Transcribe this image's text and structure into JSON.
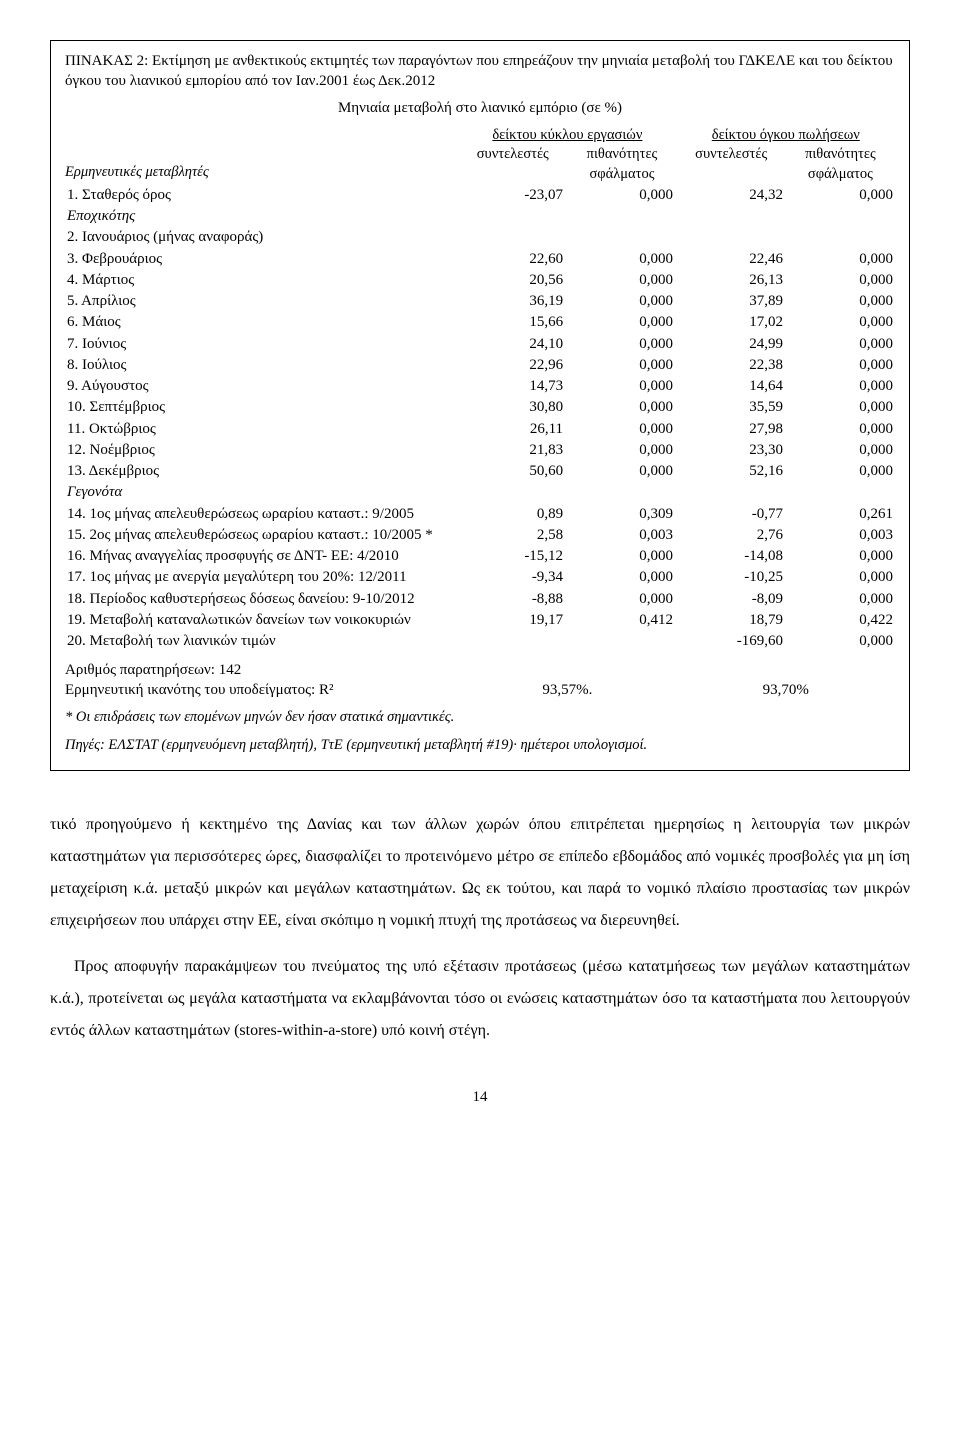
{
  "table": {
    "caption": "ΠΙΝΑΚΑΣ 2: Εκτίμηση με ανθεκτικούς εκτιμητές των παραγόντων που επηρεάζουν την μηνιαία μεταβολή του ΓΔΚΕΛΕ και του δείκτου όγκου του λιανικού εμπορίου από τον Ιαν.2001 έως Δεκ.2012",
    "subtitle": "Μηνιαία μεταβολή στο λιανικό εμπόριο (σε %)",
    "left_header": "Ερμηνευτικές μεταβλητές",
    "group1_title": "δείκτου κύκλου εργασιών",
    "group2_title": "δείκτου όγκου πωλήσεων",
    "sub_coef": "συντελεστές",
    "sub_prob": "πιθανότητες σφάλματος",
    "rows": [
      {
        "label": "1. Σταθερός όρος",
        "v1": "-23,07",
        "p1": "0,000",
        "v2": "24,32",
        "p2": "0,000",
        "gap": false
      },
      {
        "label": "Εποχικότης",
        "italic": true,
        "section": true
      },
      {
        "label": "2. Ιανουάριος (μήνας αναφοράς)",
        "v1": "",
        "p1": "",
        "v2": "",
        "p2": ""
      },
      {
        "label": "3. Φεβρουάριος",
        "v1": "22,60",
        "p1": "0,000",
        "v2": "22,46",
        "p2": "0,000"
      },
      {
        "label": "4. Μάρτιος",
        "v1": "20,56",
        "p1": "0,000",
        "v2": "26,13",
        "p2": "0,000"
      },
      {
        "label": "5. Απρίλιος",
        "v1": "36,19",
        "p1": "0,000",
        "v2": "37,89",
        "p2": "0,000"
      },
      {
        "label": "6. Μάιος",
        "v1": "15,66",
        "p1": "0,000",
        "v2": "17,02",
        "p2": "0,000"
      },
      {
        "label": "7. Ιούνιος",
        "v1": "24,10",
        "p1": "0,000",
        "v2": "24,99",
        "p2": "0,000"
      },
      {
        "label": "8. Ιούλιος",
        "v1": "22,96",
        "p1": "0,000",
        "v2": "22,38",
        "p2": "0,000"
      },
      {
        "label": "9. Αύγουστος",
        "v1": "14,73",
        "p1": "0,000",
        "v2": "14,64",
        "p2": "0,000"
      },
      {
        "label": "10. Σεπτέμβριος",
        "v1": "30,80",
        "p1": "0,000",
        "v2": "35,59",
        "p2": "0,000"
      },
      {
        "label": "11. Οκτώβριος",
        "v1": "26,11",
        "p1": "0,000",
        "v2": "27,98",
        "p2": "0,000"
      },
      {
        "label": "12. Νοέμβριος",
        "v1": "21,83",
        "p1": "0,000",
        "v2": "23,30",
        "p2": "0,000"
      },
      {
        "label": "13. Δεκέμβριος",
        "v1": "50,60",
        "p1": "0,000",
        "v2": "52,16",
        "p2": "0,000"
      },
      {
        "label": "Γεγονότα",
        "italic": true,
        "section": true
      },
      {
        "label": "14. 1ος μήνας απελευθερώσεως ωραρίου καταστ.: 9/2005",
        "v1": "0,89",
        "p1": "0,309",
        "v2": "-0,77",
        "p2": "0,261"
      },
      {
        "label": "15. 2ος μήνας απελευθερώσεως ωραρίου καταστ.: 10/2005 *",
        "v1": "2,58",
        "p1": "0,003",
        "v2": "2,76",
        "p2": "0,003"
      },
      {
        "label": "16. Μήνας αναγγελίας προσφυγής σε ΔΝΤ- ΕΕ: 4/2010",
        "v1": "-15,12",
        "p1": "0,000",
        "v2": "-14,08",
        "p2": "0,000"
      },
      {
        "label": "17. 1ος μήνας με ανεργία μεγαλύτερη του 20%: 12/2011",
        "v1": "-9,34",
        "p1": "0,000",
        "v2": "-10,25",
        "p2": "0,000"
      },
      {
        "label": "18. Περίοδος καθυστερήσεως δόσεως δανείου: 9-10/2012",
        "v1": "-8,88",
        "p1": "0,000",
        "v2": "-8,09",
        "p2": "0,000"
      },
      {
        "label": "19. Μεταβολή καταναλωτικών δανείων των νοικοκυριών",
        "v1": "19,17",
        "p1": "0,412",
        "v2": "18,79",
        "p2": "0,422",
        "gap": true
      },
      {
        "label": "20. Μεταβολή των λιανικών τιμών",
        "v1": "",
        "p1": "",
        "v2": "-169,60",
        "p2": "0,000"
      }
    ],
    "obs_line": "Αριθμός παρατηρήσεων: 142",
    "r2_label": "Ερμηνευτική ικανότης του υποδείγματος: R²",
    "r2_v1": "93,57%.",
    "r2_v2": "93,70%",
    "note1": "* Οι επιδράσεις των επομένων μηνών δεν ήσαν στατικά σημαντικές.",
    "note2": "Πηγές: ΕΛΣΤΑΤ (ερμηνευόμενη μεταβλητή), ΤτΕ (ερμηνευτική μεταβλητή #19)· ημέτεροι υπολογισμοί."
  },
  "prose": {
    "p1": "τικό προηγούμενο ή κεκτημένο της Δανίας και των άλλων χωρών όπου επιτρέπεται ημερησίως η λειτουργία των μικρών καταστημάτων για περισσότερες ώρες, διασφαλίζει το προτεινόμενο μέτρο σε επίπεδο εβδομάδος από νομικές προσβολές για μη ίση μεταχείριση κ.ά. μεταξύ μικρών και μεγάλων καταστημάτων. Ως εκ τούτου, και παρά το νομικό πλαίσιο προστασίας των μικρών επιχειρήσεων που υπάρχει στην ΕΕ, είναι σκόπιμο η νομική πτυχή της προτάσεως να διερευνηθεί.",
    "p2": "Προς αποφυγήν παρακάμψεων του πνεύματος της υπό εξέτασιν προτάσεως (μέσω κατατμήσεως των μεγάλων καταστημάτων κ.ά.), προτείνεται ως μεγάλα καταστήματα να εκλαμβάνονται τόσο οι ενώσεις καταστημάτων όσο τα καταστήματα που λειτουργούν εντός άλλων καταστημάτων (stores-within-a-store) υπό κοινή στέγη."
  },
  "pagenum": "14"
}
